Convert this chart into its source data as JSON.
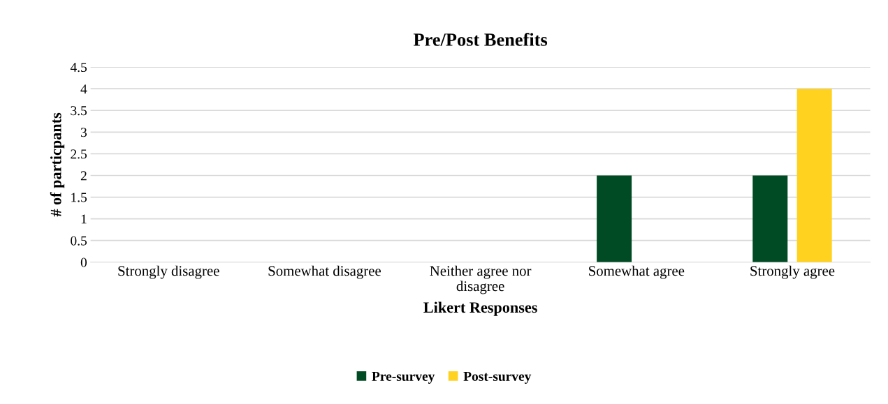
{
  "chart_data": {
    "type": "bar",
    "title": "Pre/Post Benefits",
    "xlabel": "Likert Responses",
    "ylabel": "# of particpants",
    "categories": [
      "Strongly disagree",
      "Somewhat disagree",
      "Neither agree nor\ndisagree",
      "Somewhat agree",
      "Strongly agree"
    ],
    "series": [
      {
        "name": "Pre-survey",
        "color": "#004b23",
        "values": [
          0,
          0,
          0,
          2,
          2
        ]
      },
      {
        "name": "Post-survey",
        "color": "#ffd220",
        "values": [
          0,
          0,
          0,
          0,
          4
        ]
      }
    ],
    "ylim": [
      0,
      4.5
    ],
    "yticks": [
      0,
      0.5,
      1,
      1.5,
      2,
      2.5,
      3,
      3.5,
      4,
      4.5
    ],
    "grid": "y",
    "legend": "bottom"
  }
}
